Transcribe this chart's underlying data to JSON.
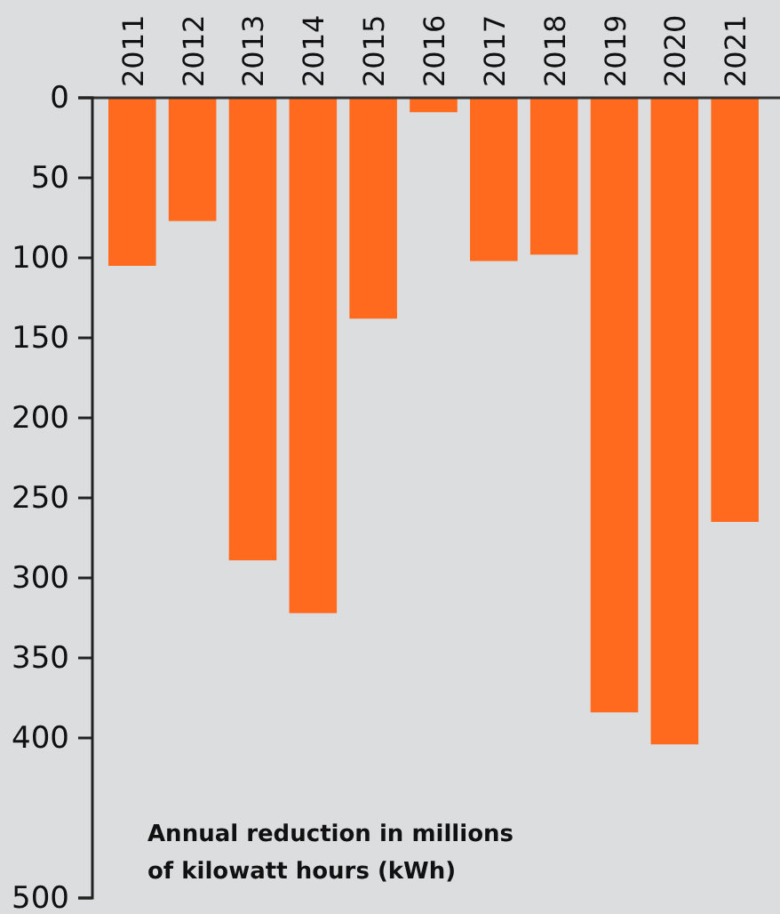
{
  "chart_data": {
    "type": "bar",
    "categories": [
      "2011",
      "2012",
      "2013",
      "2014",
      "2015",
      "2016",
      "2017",
      "2018",
      "2019",
      "2020",
      "2021"
    ],
    "values": [
      105,
      77,
      289,
      322,
      138,
      9,
      102,
      98,
      384,
      404,
      265
    ],
    "color": "#ff6a1e",
    "ylim": [
      500,
      0
    ],
    "yticks": [
      0,
      50,
      100,
      150,
      200,
      250,
      300,
      350,
      400,
      500
    ],
    "annotations": [
      "Annual reduction in millions of kilowatt hours (kWh)"
    ]
  }
}
